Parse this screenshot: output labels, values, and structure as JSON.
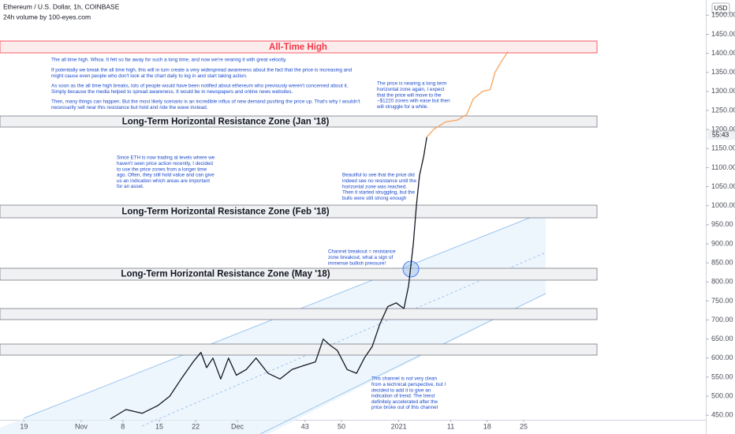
{
  "header": {
    "title": "Ethereum / U.S. Dollar, 1h, COINBASE",
    "subtitle": "24h volume by 100-eyes.com",
    "currency": "USD",
    "countdown": "55:43"
  },
  "zones": [
    "All-Time High",
    "Long-Term Horizontal Resistance Zone (Jan '18)",
    "Long-Term Horizontal Resistance Zone (Feb '18)",
    "Long-Term Horizontal Resistance Zone (May '18)"
  ],
  "notes": [
    [
      "The all time high. Whoa. It felt so far away for such a long time, and now we're nearing it with great velocity."
    ],
    [
      "If potentially we break the all time high, this will in turn create a very widespread awareness about the fact that the price is increasing and",
      "might cause even people who don't look at the chart daily to log in and start taking action."
    ],
    [
      "As soon as the all time high breaks, lots of people would have been notified about ethereum who previously weren't concerned about it.",
      "Simply because the media helped to spread awareness. It would be in newspapers and online news websites."
    ],
    [
      "Then, many things can happen. But the most likely scenario is an incredible influx of new demand pushing the price up. That's why I wouldn't",
      "necessarily sell near this resistance but hold and ride the wave instead."
    ],
    [
      "The price is nearing a long term",
      "horizontal zone again, I expect",
      "that the price will move to the",
      "~$1220 zones with ease but then",
      "will struggle for a while."
    ],
    [
      "Since ETH is now trading at levels where we",
      "haven't seen price action recently, I decided",
      "to use the price zones from a longer time",
      "ago. Often, they still hold value and can give",
      "us an indication which areas are important",
      "for an asset."
    ],
    [
      "Beautiful to see that the price did",
      "indeed see no resistance until the",
      "horizontal zone was reached.",
      "Then it started struggling, but the",
      "bulls were still strong enough"
    ],
    [
      "Channel breakout = resistance",
      "zone breakout, what a sign of",
      "immense bullish pressure!"
    ],
    [
      "This channel is not very clean",
      "from a technical perspective, but I",
      "decided to add it to give an",
      "indication of trend. The trend",
      "definitely accelerated after the",
      "price broke out of this channel"
    ]
  ],
  "chart_data": {
    "type": "line",
    "series": [
      {
        "color": "#131722",
        "x": [
          5.6,
          8.6,
          11.7,
          14.7,
          17.0,
          19.2,
          21.5,
          23.0,
          24.1,
          25.3,
          26.8,
          28.3,
          29.8,
          31.7,
          33.6,
          35.9,
          38.2,
          40.5,
          42.7,
          45.0,
          46.5,
          47.7,
          49.2,
          51.1,
          52.9,
          54.4,
          55.9,
          57.4,
          58.9,
          60.5,
          62.0,
          62.9,
          63.8,
          64.4,
          65.0,
          65.8,
          66.4
        ],
        "values": [
          440,
          465,
          455,
          475,
          500,
          545,
          590,
          615,
          575,
          600,
          545,
          600,
          555,
          570,
          600,
          560,
          545,
          570,
          580,
          590,
          650,
          635,
          620,
          570,
          560,
          600,
          630,
          690,
          735,
          745,
          730,
          790,
          900,
          1000,
          1080,
          1130,
          1180
        ]
      },
      {
        "color": "#f7a35c",
        "x": [
          66.4,
          67.7,
          70.0,
          72.3,
          74.1,
          75.3,
          77.1,
          78.6,
          79.5,
          80.8,
          82.0
        ],
        "values": [
          1180,
          1200,
          1220,
          1225,
          1240,
          1280,
          1300,
          1305,
          1350,
          1380,
          1405
        ]
      }
    ],
    "xlim": [
      -15.6,
      120
    ],
    "ylim": [
      438,
      1540
    ],
    "xticks": [
      {
        "value": -11,
        "label": "19"
      },
      {
        "value": 0,
        "label": "Nov"
      },
      8,
      15,
      22,
      {
        "value": 30,
        "label": "Dec"
      },
      43,
      50,
      {
        "value": 61,
        "label": "2021"
      },
      {
        "value": 71,
        "label": "11"
      },
      {
        "value": 78,
        "label": "18"
      },
      {
        "value": 85,
        "label": "25"
      }
    ],
    "yticks": [
      {
        "value": 450,
        "label": "450.00"
      },
      {
        "value": 500,
        "label": "500.00"
      },
      {
        "value": 550,
        "label": "550.00"
      },
      {
        "value": 600,
        "label": "600.00"
      },
      {
        "value": 650,
        "label": "650.00"
      },
      {
        "value": 700,
        "label": "700.00"
      },
      {
        "value": 750,
        "label": "750.00"
      },
      {
        "value": 800,
        "label": "800.00"
      },
      {
        "value": 850,
        "label": "850.00"
      },
      {
        "value": 900,
        "label": "900.00"
      },
      {
        "value": 950,
        "label": "950.00"
      },
      {
        "value": 1000,
        "label": "1000.00"
      },
      {
        "value": 1050,
        "label": "1050.00"
      },
      {
        "value": 1100,
        "label": "1100.00"
      },
      {
        "value": 1150,
        "label": "1150.00"
      },
      {
        "value": 1200,
        "label": "1200.00"
      },
      {
        "value": 1250,
        "label": "1250.00"
      },
      {
        "value": 1300,
        "label": "1300.00"
      },
      {
        "value": 1350,
        "label": "1350.00"
      },
      {
        "value": 1400,
        "label": "1400.00"
      },
      {
        "value": 1450,
        "label": "1450.00"
      },
      {
        "value": 1500,
        "label": "1500.00"
      }
    ]
  }
}
